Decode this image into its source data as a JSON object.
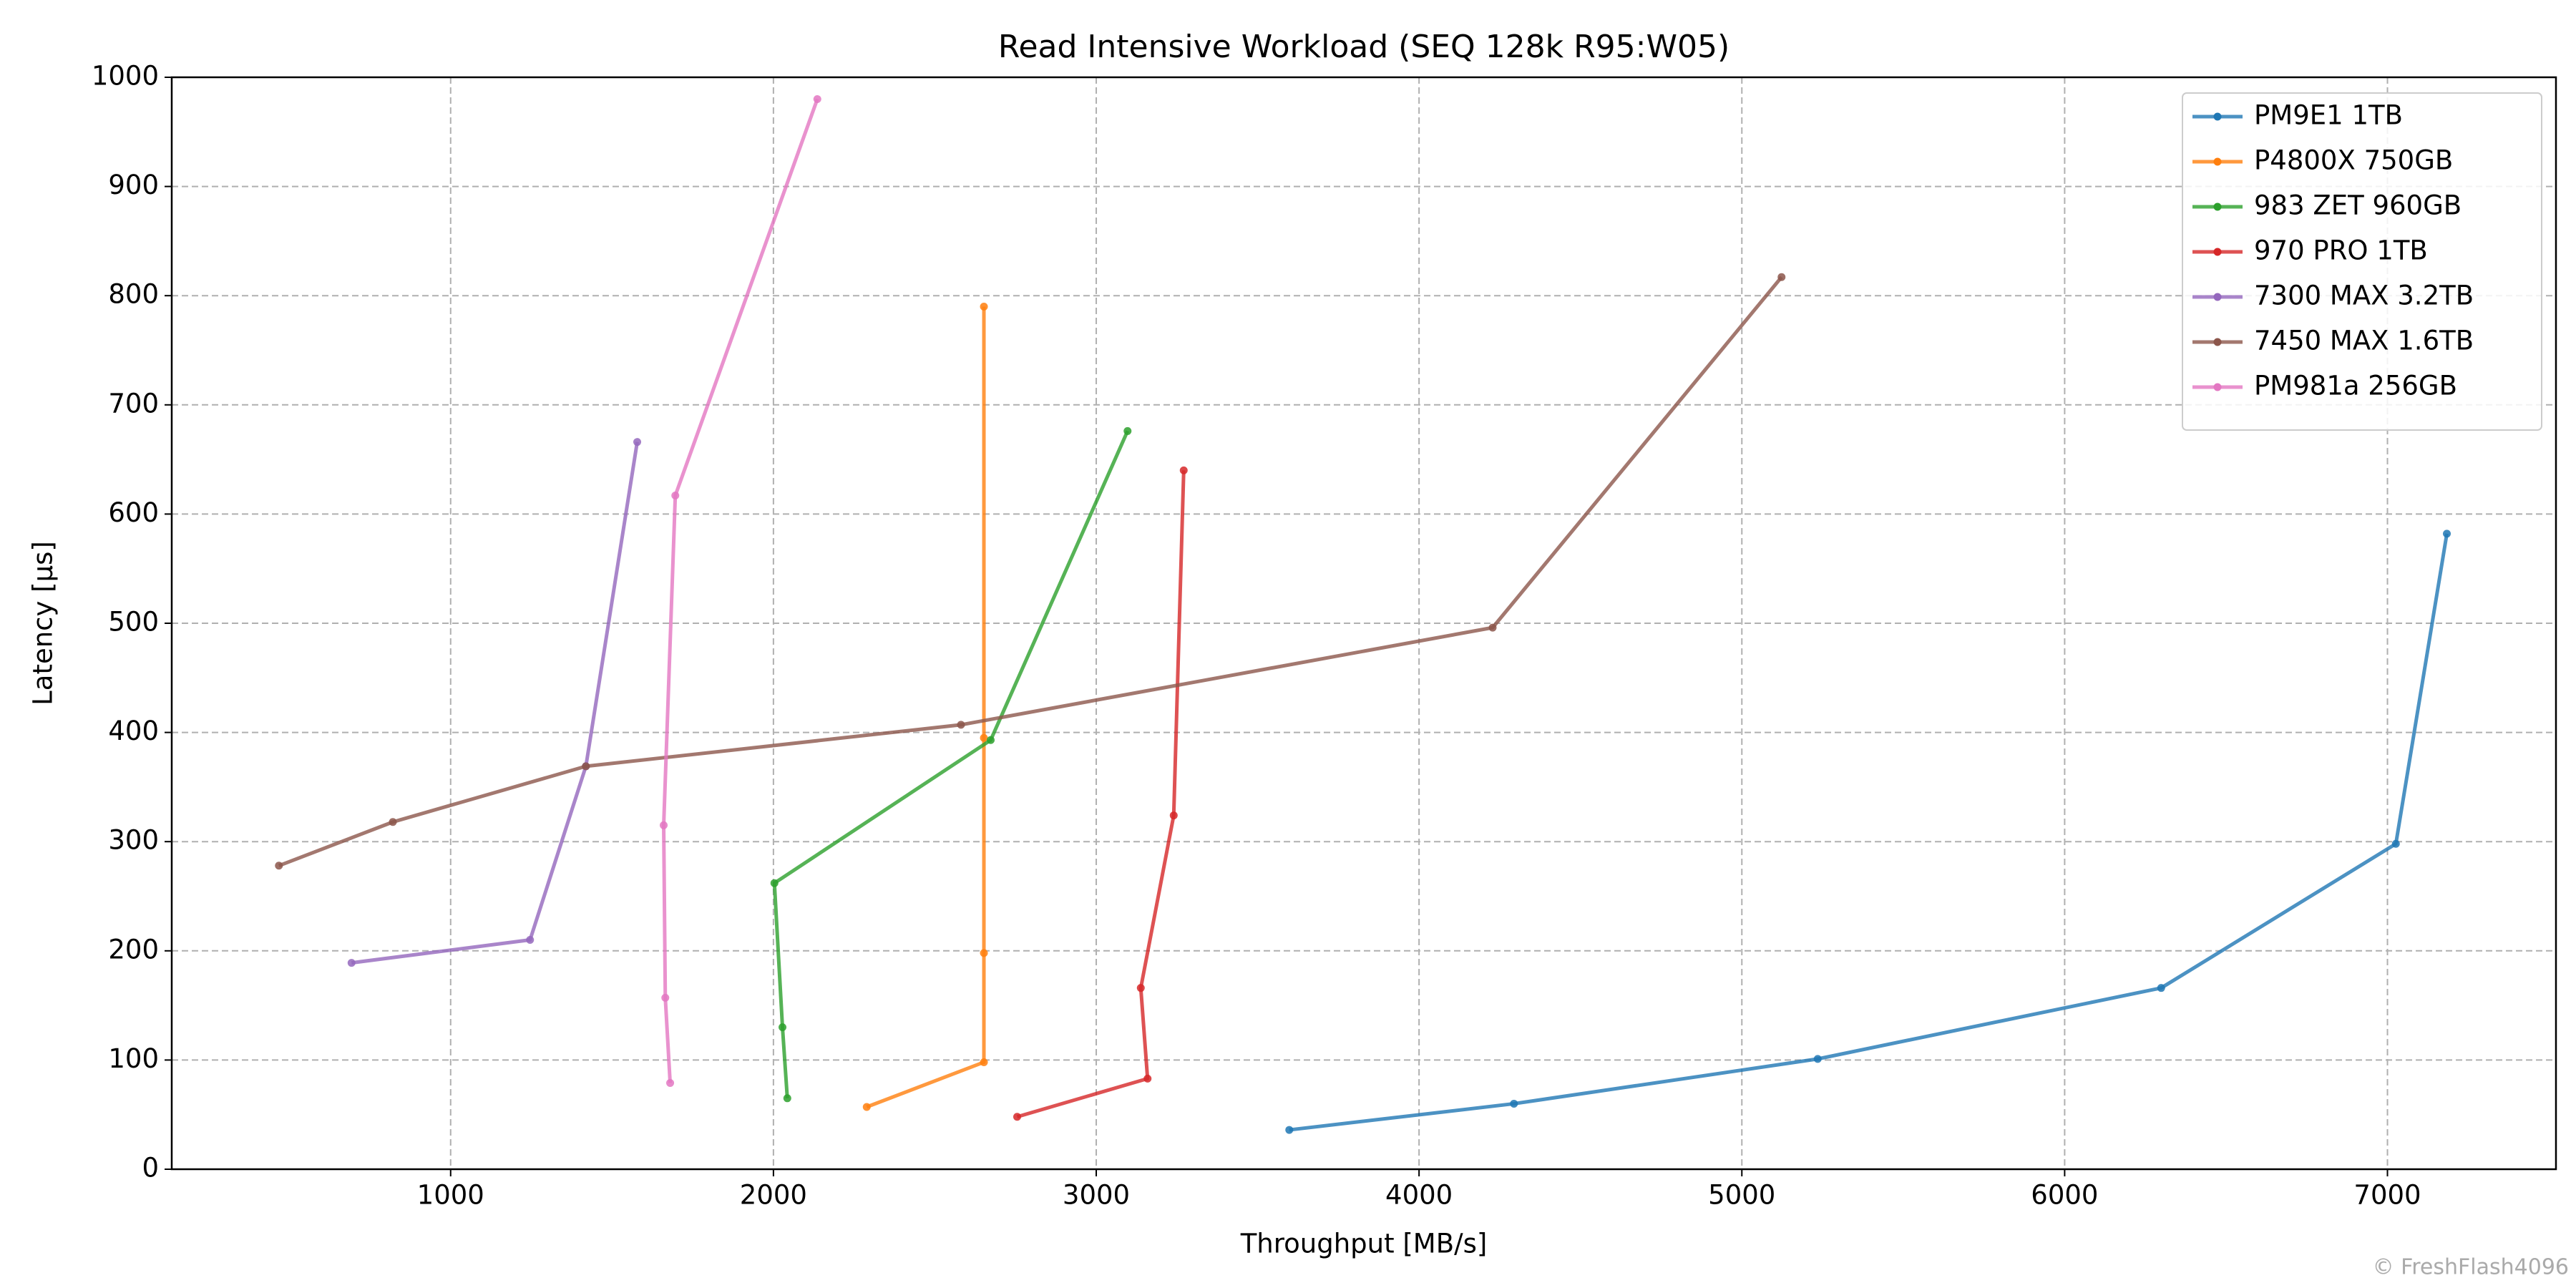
{
  "chart_data": {
    "type": "line",
    "title": "Read Intensive Workload (SEQ 128k R95:W05)",
    "xlabel": "Throughput [MB/s]",
    "ylabel": "Latency [µs]",
    "annotation": "© FreshFlash4096",
    "xlim": [
      136,
      7522
    ],
    "ylim": [
      0,
      1000
    ],
    "xticks": [
      1000,
      2000,
      3000,
      4000,
      5000,
      6000,
      7000
    ],
    "yticks": [
      0,
      100,
      200,
      300,
      400,
      500,
      600,
      700,
      800,
      900,
      1000
    ],
    "grid": true,
    "legend": "upper right",
    "series": [
      {
        "name": "PM9E1 1TB",
        "color": "#1f77b4",
        "x": [
          3598,
          4294,
          5235,
          6299,
          7026,
          7184
        ],
        "values": [
          36,
          60,
          101,
          166,
          298,
          582
        ]
      },
      {
        "name": "P4800X 750GB",
        "color": "#ff7f0e",
        "x": [
          2289,
          2652,
          2652,
          2652,
          2652
        ],
        "values": [
          57,
          98,
          198,
          395,
          790
        ]
      },
      {
        "name": "983 ZET 960GB",
        "color": "#2ca02c",
        "x": [
          2043,
          2028,
          2003,
          2673,
          3097
        ],
        "values": [
          65,
          130,
          262,
          393,
          676
        ]
      },
      {
        "name": "970 PRO 1TB",
        "color": "#d62728",
        "x": [
          2755,
          3159,
          3138,
          3240,
          3271
        ],
        "values": [
          48,
          83,
          166,
          324,
          640
        ]
      },
      {
        "name": "7300 MAX 3.2TB",
        "color": "#9467bd",
        "x": [
          693,
          1246,
          1419,
          1578
        ],
        "values": [
          189,
          210,
          369,
          666
        ]
      },
      {
        "name": "7450 MAX 1.6TB",
        "color": "#8c564b",
        "x": [
          468,
          821,
          1419,
          2581,
          4228,
          5123
        ],
        "values": [
          278,
          318,
          369,
          407,
          496,
          817
        ]
      },
      {
        "name": "PM981a 256GB",
        "color": "#e377c2",
        "x": [
          1680,
          1665,
          1660,
          1696,
          2136
        ],
        "values": [
          79,
          157,
          315,
          617,
          980
        ]
      }
    ]
  }
}
